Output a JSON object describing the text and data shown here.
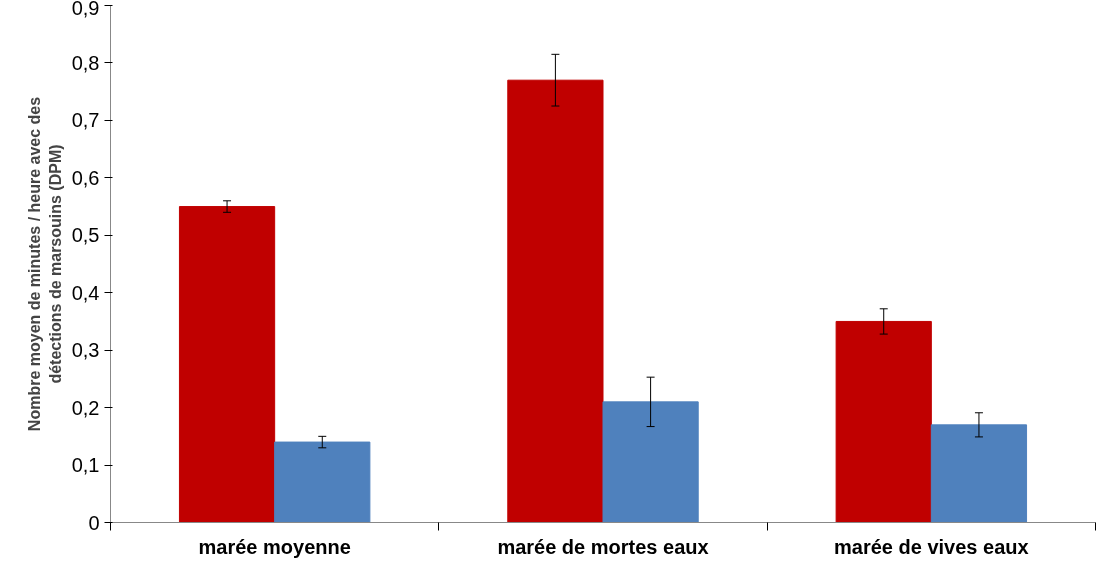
{
  "chart_data": {
    "type": "bar",
    "ylabel": "Nombre moyen de minutes / heure avec des\ndétections de marsouins (DPM)",
    "categories": [
      "marée moyenne",
      "marée de mortes eaux",
      "marée de vives eaux"
    ],
    "series": [
      {
        "color": "#c00000",
        "values": [
          0.55,
          0.77,
          0.35
        ],
        "errors": [
          0.01,
          0.045,
          0.022
        ]
      },
      {
        "color": "#4f81bd",
        "values": [
          0.14,
          0.21,
          0.17
        ],
        "errors": [
          0.01,
          0.043,
          0.021
        ]
      }
    ],
    "ylim": [
      0,
      0.9
    ],
    "yticks": [
      0,
      {
        "value": 0.1,
        "label": "0,1"
      },
      {
        "value": 0.2,
        "label": "0,2"
      },
      {
        "value": 0.3,
        "label": "0,3"
      },
      {
        "value": 0.4,
        "label": "0,4"
      },
      {
        "value": 0.5,
        "label": "0,5"
      },
      {
        "value": 0.6,
        "label": "0,6"
      },
      {
        "value": 0.7,
        "label": "0,7"
      },
      {
        "value": 0.8,
        "label": "0,8"
      },
      {
        "value": 0.9,
        "label": "0,9"
      }
    ],
    "grid": false
  }
}
